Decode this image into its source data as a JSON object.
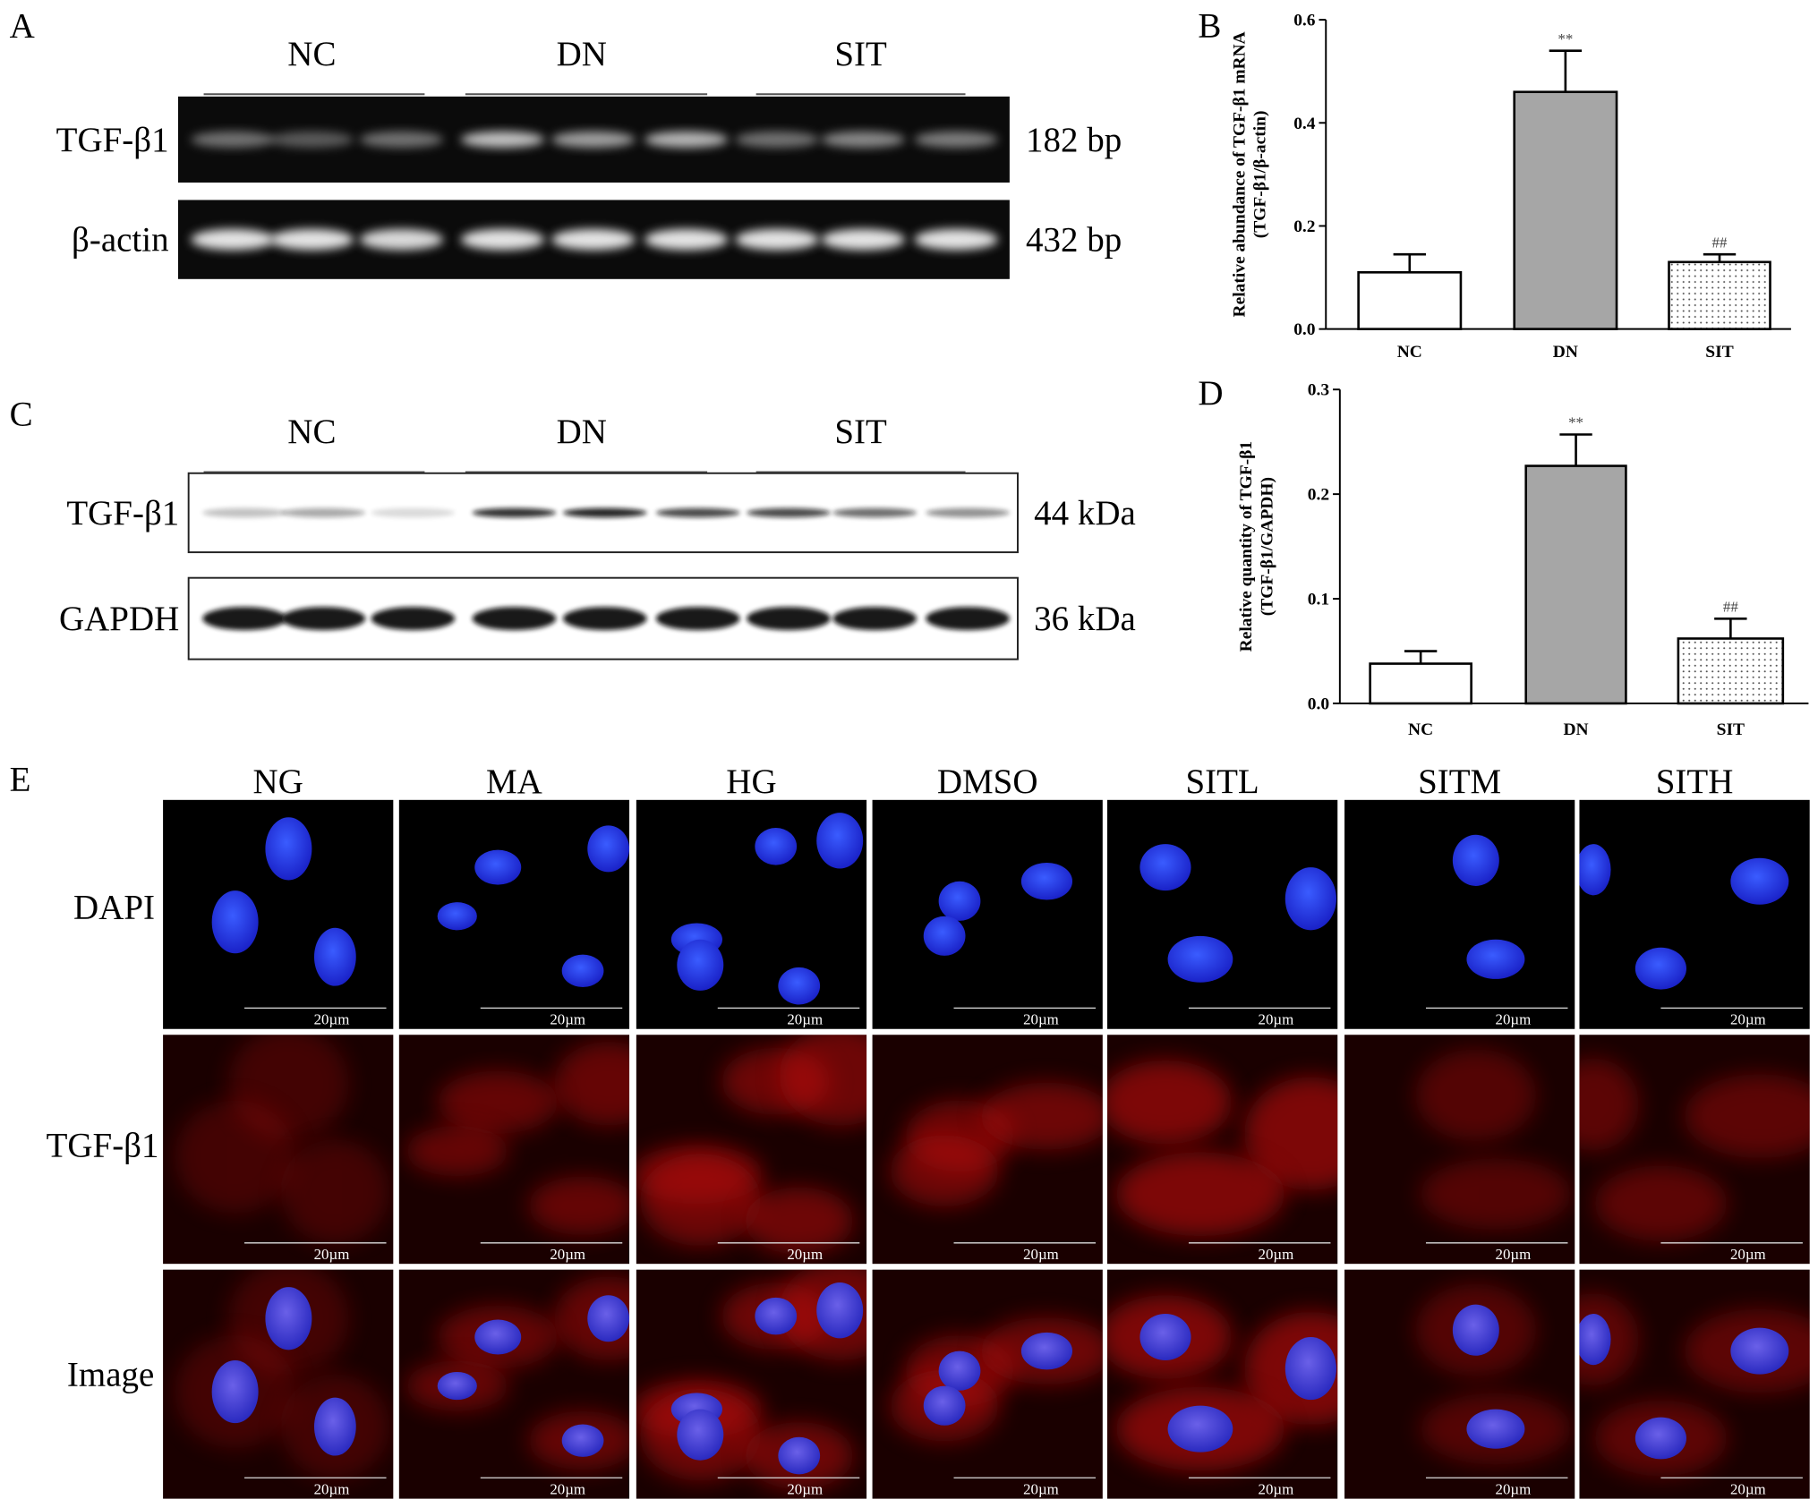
{
  "panel_A": {
    "label": "A",
    "groups": [
      "NC",
      "DN",
      "SIT"
    ],
    "rows": [
      {
        "name": "TGF-β1",
        "size": "182 bp"
      },
      {
        "name": "β-actin",
        "size": "432 bp"
      }
    ]
  },
  "panel_C": {
    "label": "C",
    "groups": [
      "NC",
      "DN",
      "SIT"
    ],
    "rows": [
      {
        "name": "TGF-β1",
        "size": "44 kDa"
      },
      {
        "name": "GAPDH",
        "size": "36 kDa"
      }
    ]
  },
  "panel_E": {
    "label": "E",
    "columns": [
      "NG",
      "MA",
      "HG",
      "DMSO",
      "SITL",
      "SITM",
      "SITH"
    ],
    "rows": [
      "DAPI",
      "TGF-β1",
      "Image"
    ],
    "scale_bar": "20µm"
  },
  "chart_data": [
    {
      "type": "bar",
      "panel": "B",
      "ylabel": [
        "Relative abundance of TGF-β1 mRNA",
        "(TGF-β1/β-actin)"
      ],
      "categories": [
        "NC",
        "DN",
        "SIT"
      ],
      "values": [
        0.11,
        0.46,
        0.13
      ],
      "errors": [
        0.035,
        0.08,
        0.015
      ],
      "annotations": [
        null,
        "**",
        "##"
      ],
      "colors": [
        "#ffffff",
        "#a6a6a6",
        "#ffffff"
      ],
      "hatch": [
        false,
        false,
        true
      ],
      "ylim": [
        0,
        0.6
      ],
      "yticks": [
        {
          "value": 0,
          "label": "0.0"
        },
        0.2,
        0.4,
        0.6
      ]
    },
    {
      "type": "bar",
      "panel": "D",
      "ylabel": [
        "Relative quantity of TGF-β1",
        "(TGF-β1/GAPDH)"
      ],
      "categories": [
        "NC",
        "DN",
        "SIT"
      ],
      "values": [
        0.038,
        0.227,
        0.062
      ],
      "errors": [
        0.012,
        0.03,
        0.019
      ],
      "annotations": [
        null,
        "**",
        "##"
      ],
      "colors": [
        "#ffffff",
        "#a6a6a6",
        "#ffffff"
      ],
      "hatch": [
        false,
        false,
        true
      ],
      "ylim": [
        0,
        0.3
      ],
      "yticks": [
        {
          "value": 0,
          "label": "0.0"
        },
        0.1,
        0.2,
        0.3
      ]
    }
  ]
}
